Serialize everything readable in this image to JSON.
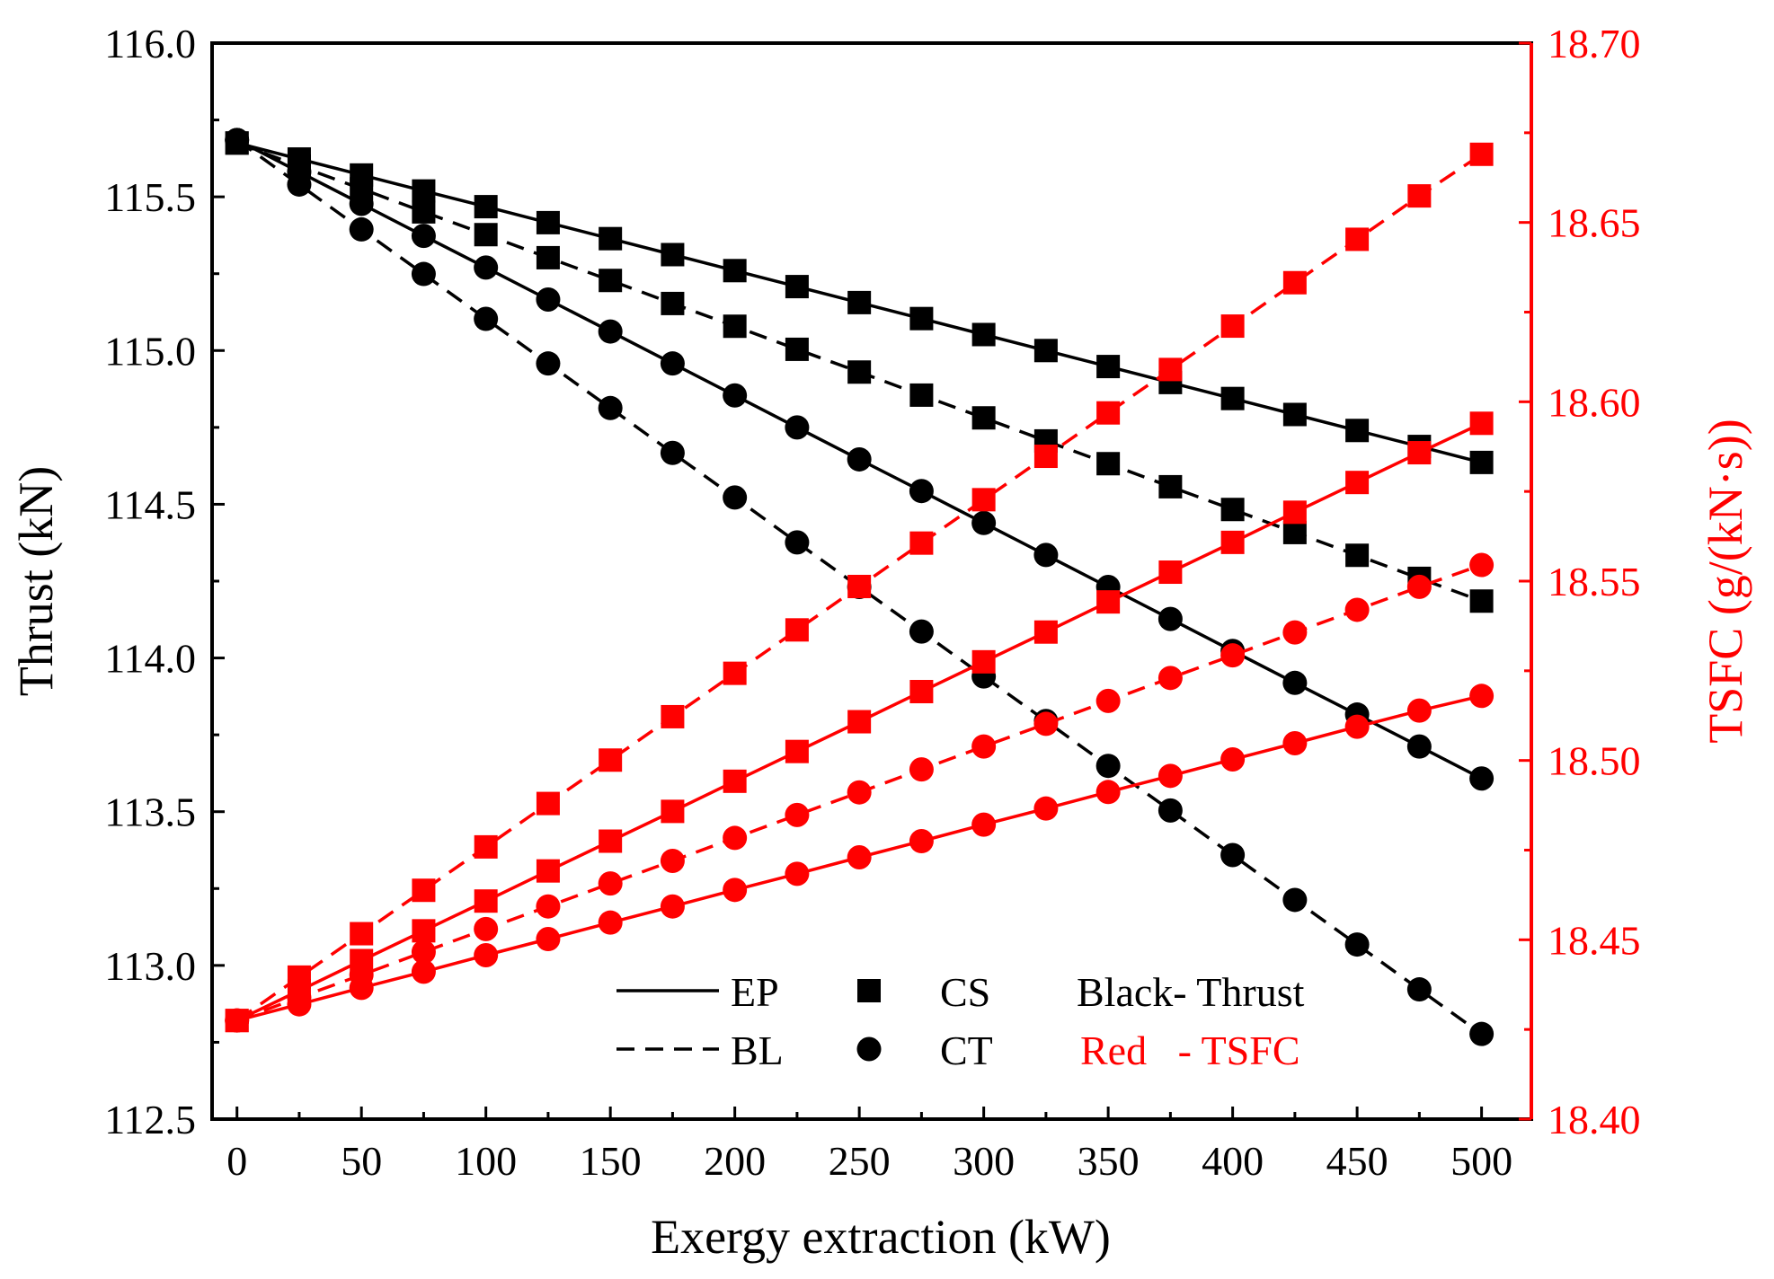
{
  "chart_data": {
    "type": "line",
    "xlabel": "Exergy extraction  (kW)",
    "ylabel_left": "Thrust  (kN)",
    "ylabel_right": "TSFC  (g/(kN·s))",
    "xlim": [
      -10,
      520
    ],
    "ylim_left": [
      112.5,
      116.0
    ],
    "ylim_right": [
      18.4,
      18.7
    ],
    "x_ticks": [
      0,
      50,
      100,
      150,
      200,
      250,
      300,
      350,
      400,
      450,
      500
    ],
    "x_tick_labels": [
      "0",
      "50",
      "100",
      "150",
      "200",
      "250",
      "300",
      "350",
      "400",
      "450",
      "500"
    ],
    "y_left_ticks": [
      112.5,
      113.0,
      113.5,
      114.0,
      114.5,
      115.0,
      115.5,
      116.0
    ],
    "y_left_tick_labels": [
      "112.5",
      "113.0",
      "113.5",
      "114.0",
      "114.5",
      "115.0",
      "115.5",
      "116.0"
    ],
    "y_right_ticks": [
      18.4,
      18.45,
      18.5,
      18.55,
      18.6,
      18.65,
      18.7
    ],
    "y_right_tick_labels": [
      "18.40",
      "18.45",
      "18.50",
      "18.55",
      "18.60",
      "18.65",
      "18.70"
    ],
    "x": [
      0,
      25,
      50,
      75,
      100,
      125,
      150,
      175,
      200,
      225,
      250,
      275,
      300,
      325,
      350,
      375,
      400,
      425,
      450,
      475,
      500
    ],
    "series": [
      {
        "name": "EP-CS Thrust",
        "axis": "left",
        "color": "#000000",
        "line": "solid",
        "marker": "square",
        "values": [
          115.675,
          115.623,
          115.571,
          115.519,
          115.468,
          115.416,
          115.364,
          115.312,
          115.26,
          115.208,
          115.156,
          115.104,
          115.052,
          115.0,
          114.948,
          114.896,
          114.844,
          114.792,
          114.74,
          114.688,
          114.636
        ]
      },
      {
        "name": "BL-CS Thrust",
        "axis": "left",
        "color": "#000000",
        "line": "dashed",
        "marker": "square",
        "values": [
          115.675,
          115.6,
          115.526,
          115.451,
          115.377,
          115.302,
          115.228,
          115.153,
          115.079,
          115.004,
          114.93,
          114.855,
          114.781,
          114.706,
          114.632,
          114.557,
          114.483,
          114.408,
          114.334,
          114.259,
          114.185
        ]
      },
      {
        "name": "EP-CT Thrust",
        "axis": "left",
        "color": "#000000",
        "line": "solid",
        "marker": "circle",
        "values": [
          115.685,
          115.581,
          115.477,
          115.373,
          115.27,
          115.166,
          115.062,
          114.958,
          114.854,
          114.75,
          114.646,
          114.543,
          114.439,
          114.335,
          114.231,
          114.127,
          114.023,
          113.919,
          113.816,
          113.712,
          113.608
        ]
      },
      {
        "name": "BL-CT Thrust",
        "axis": "left",
        "color": "#000000",
        "line": "dashed",
        "marker": "circle",
        "values": [
          115.685,
          115.54,
          115.394,
          115.249,
          115.103,
          114.958,
          114.813,
          114.667,
          114.522,
          114.376,
          114.231,
          114.086,
          113.94,
          113.795,
          113.649,
          113.504,
          113.359,
          113.213,
          113.068,
          112.922,
          112.777
        ]
      },
      {
        "name": "EP-CS TSFC",
        "axis": "right",
        "color": "#ff0000",
        "line": "solid",
        "marker": "square",
        "values": [
          18.4275,
          18.4358,
          18.4442,
          18.4525,
          18.4608,
          18.4692,
          18.4775,
          18.4858,
          18.4942,
          18.5025,
          18.5108,
          18.5192,
          18.5275,
          18.5358,
          18.5442,
          18.5525,
          18.5608,
          18.5692,
          18.5775,
          18.5858,
          18.594
        ]
      },
      {
        "name": "BL-CS TSFC",
        "axis": "right",
        "color": "#ff0000",
        "line": "dashed",
        "marker": "square",
        "values": [
          18.4275,
          18.4396,
          18.4517,
          18.4638,
          18.4759,
          18.488,
          18.5001,
          18.5122,
          18.5243,
          18.5364,
          18.5485,
          18.5606,
          18.5727,
          18.5848,
          18.5969,
          18.609,
          18.6211,
          18.6332,
          18.6453,
          18.6574,
          18.669
        ]
      },
      {
        "name": "EP-CT TSFC",
        "axis": "right",
        "color": "#ff0000",
        "line": "solid",
        "marker": "circle",
        "values": [
          18.4275,
          18.432,
          18.4366,
          18.4411,
          18.4457,
          18.4502,
          18.4548,
          18.4593,
          18.4639,
          18.4684,
          18.473,
          18.4775,
          18.4821,
          18.4866,
          18.4912,
          18.4957,
          18.5003,
          18.5048,
          18.5094,
          18.5139,
          18.518
        ]
      },
      {
        "name": "BL-CT TSFC",
        "axis": "right",
        "color": "#ff0000",
        "line": "dashed",
        "marker": "circle",
        "values": [
          18.4275,
          18.4339,
          18.4402,
          18.4466,
          18.453,
          18.4593,
          18.4657,
          18.472,
          18.4784,
          18.4848,
          18.4911,
          18.4975,
          18.5039,
          18.5102,
          18.5166,
          18.523,
          18.5293,
          18.5357,
          18.542,
          18.5484,
          18.5545
        ]
      }
    ],
    "legend": {
      "position": "bottom-right",
      "line_styles": [
        {
          "style": "solid",
          "label": "EP"
        },
        {
          "style": "dashed",
          "label": "BL"
        }
      ],
      "markers": [
        {
          "marker": "square",
          "label": "CS"
        },
        {
          "marker": "circle",
          "label": "CT"
        }
      ],
      "color_notes": [
        {
          "color": "#000000",
          "label": "Black- Thrust"
        },
        {
          "color": "#ff0000",
          "label": "Red   - TSFC"
        }
      ]
    }
  }
}
